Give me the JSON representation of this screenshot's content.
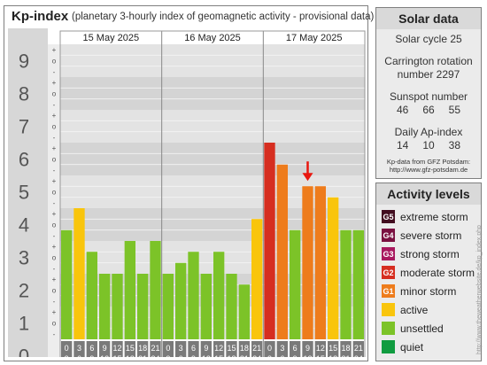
{
  "panel": {
    "title": "Kp-index",
    "subtitle": "(planetary 3-hourly index of geomagnetic activity - provisional data)"
  },
  "solar": {
    "heading": "Solar data",
    "cycle": "Solar cycle 25",
    "carrington_line1": "Carrington rotation",
    "carrington_line2": "number 2297",
    "sunspot_label": "Sunspot number",
    "sunspot_values": [
      "46",
      "66",
      "55"
    ],
    "ap_label": "Daily Ap-index",
    "ap_values": [
      "14",
      "10",
      "38"
    ],
    "source_line1": "Kp-data from GFZ Potsdam:",
    "source_line2": "http://www.gfz-potsdam.de"
  },
  "legend": {
    "heading": "Activity levels",
    "items": [
      {
        "code": "G5",
        "label": "extreme storm",
        "color": "#420d1f"
      },
      {
        "code": "G4",
        "label": "severe storm",
        "color": "#7a1040"
      },
      {
        "code": "G3",
        "label": "strong storm",
        "color": "#a8185e"
      },
      {
        "code": "G2",
        "label": "moderate storm",
        "color": "#d62e20"
      },
      {
        "code": "G1",
        "label": "minor storm",
        "color": "#ee7c1c"
      },
      {
        "code": "",
        "label": "active",
        "color": "#f9c50c"
      },
      {
        "code": "",
        "label": "unsettled",
        "color": "#7cc328"
      },
      {
        "code": "",
        "label": "quiet",
        "color": "#109c40"
      }
    ]
  },
  "credit": "http://www.theweatherwebsite.de/kp_index.php",
  "chart_data": {
    "type": "bar",
    "ylim": [
      0,
      9
    ],
    "y_ticks": [
      "0",
      "1",
      "2",
      "3",
      "4",
      "5",
      "6",
      "7",
      "8",
      "9"
    ],
    "sub_tick_labels": [
      "+",
      "o",
      "-"
    ],
    "days": [
      "15 May 2025",
      "16 May 2025",
      "17 May 2025"
    ],
    "hour_start_labels": [
      "0",
      "3",
      "6",
      "9",
      "12",
      "15",
      "18",
      "21"
    ],
    "hour_end_labels": [
      "3",
      "6",
      "9",
      "12",
      "15",
      "18",
      "21",
      "24"
    ],
    "values": [
      [
        3.33,
        4.0,
        2.67,
        2.0,
        2.0,
        3.0,
        2.0,
        3.0
      ],
      [
        2.0,
        2.33,
        2.67,
        2.0,
        2.67,
        2.0,
        1.67,
        3.67
      ],
      [
        6.0,
        5.33,
        3.33,
        4.67,
        4.67,
        4.33,
        3.33,
        3.33
      ]
    ],
    "bar_colors": [
      [
        "#7cc328",
        "#f9c50c",
        "#7cc328",
        "#7cc328",
        "#7cc328",
        "#7cc328",
        "#7cc328",
        "#7cc328"
      ],
      [
        "#7cc328",
        "#7cc328",
        "#7cc328",
        "#7cc328",
        "#7cc328",
        "#7cc328",
        "#7cc328",
        "#f9c50c"
      ],
      [
        "#d62e20",
        "#ee7c1c",
        "#7cc328",
        "#ee7c1c",
        "#ee7c1c",
        "#f9c50c",
        "#7cc328",
        "#7cc328"
      ]
    ],
    "marker": {
      "day": 2,
      "interval": 3,
      "color": "#e8170f"
    }
  }
}
